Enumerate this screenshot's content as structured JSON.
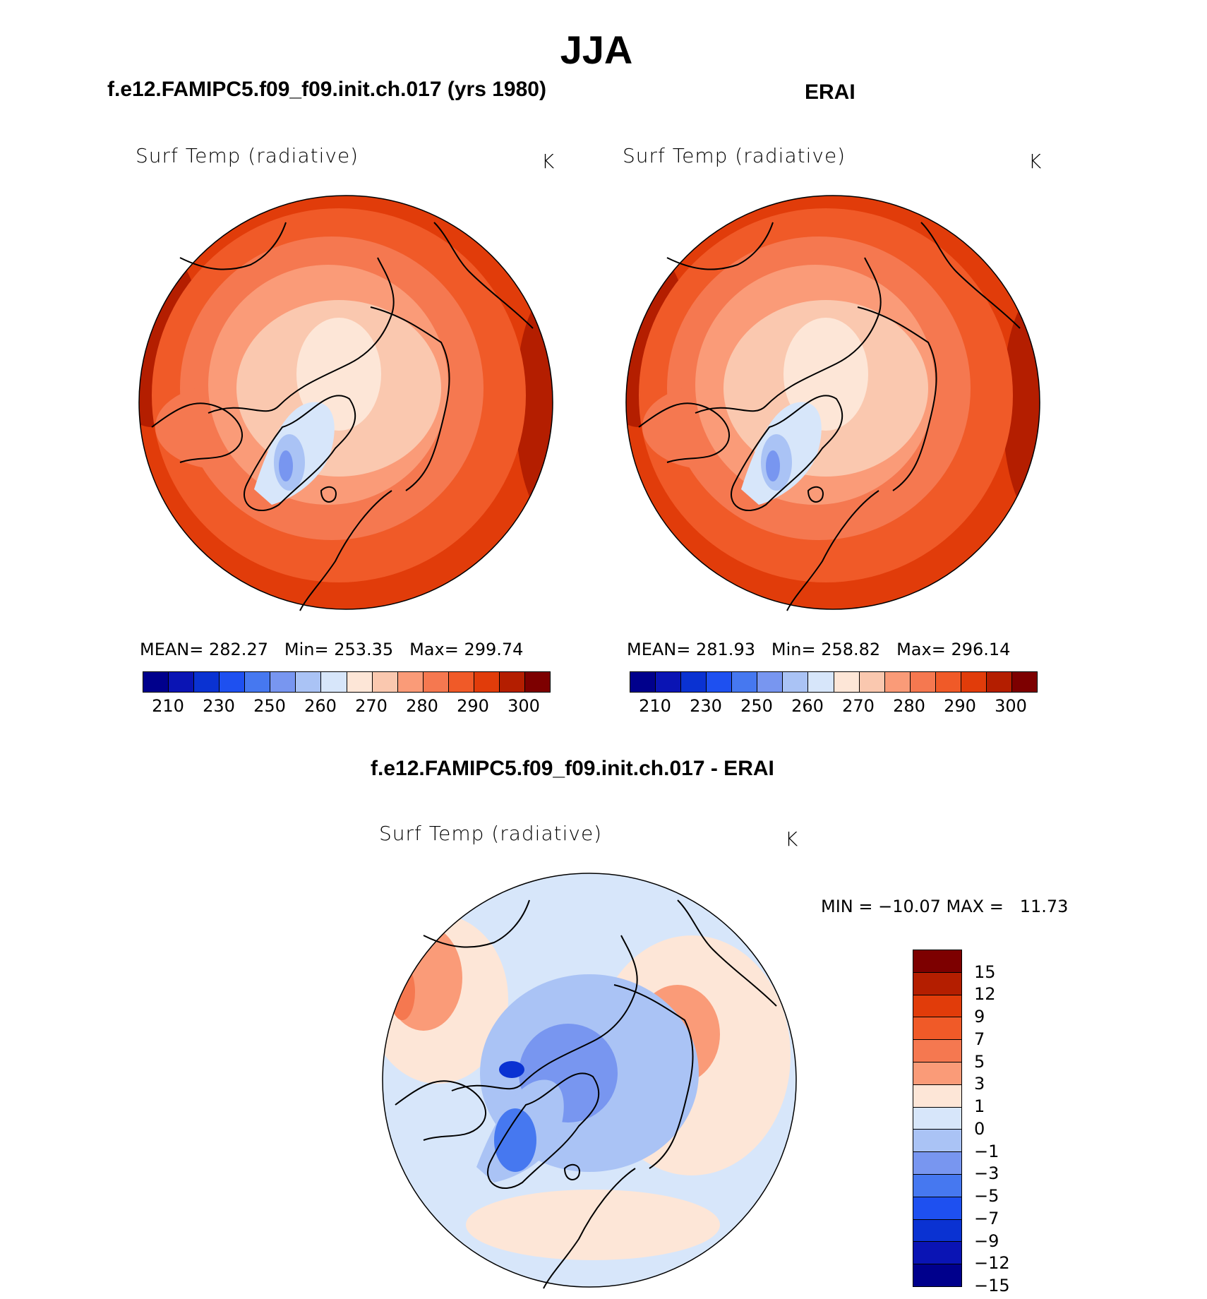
{
  "title": "JJA",
  "colors": {
    "abs_palette": [
      "#00008c",
      "#0a14b4",
      "#0a32d2",
      "#1e50f0",
      "#4678f0",
      "#7896f0",
      "#aac3f5",
      "#d7e6fa",
      "#fde6d7",
      "#fac8af",
      "#fa9b78",
      "#f57850",
      "#f05a28",
      "#e13c0a",
      "#b41e00",
      "#7d0000"
    ],
    "diff_palette": [
      "#7d0000",
      "#b41e00",
      "#e13c0a",
      "#f05a28",
      "#f57850",
      "#fa9b78",
      "#fde6d7",
      "#d7e6fa",
      "#aac3f5",
      "#7896f0",
      "#4678f0",
      "#1e50f0",
      "#0a32d2",
      "#0a14b4",
      "#00008c"
    ]
  },
  "panels": [
    {
      "heading": "f.e12.FAMIPC5.f09_f09.init.ch.017 (yrs 1980)",
      "variable": "Surf Temp (radiative)",
      "units": "K",
      "stats": {
        "mean_label": "MEAN=",
        "mean": "282.27",
        "min_label": "Min=",
        "min": "253.35",
        "max_label": "Max=",
        "max": "299.74"
      },
      "colorbar_ticks": [
        "210",
        "230",
        "250",
        "260",
        "270",
        "280",
        "290",
        "300"
      ]
    },
    {
      "heading": "ERAI",
      "variable": "Surf Temp (radiative)",
      "units": "K",
      "stats": {
        "mean_label": "MEAN=",
        "mean": "281.93",
        "min_label": "Min=",
        "min": "258.82",
        "max_label": "Max=",
        "max": "296.14"
      },
      "colorbar_ticks": [
        "210",
        "230",
        "250",
        "260",
        "270",
        "280",
        "290",
        "300"
      ]
    }
  ],
  "diff_panel": {
    "heading": "f.e12.FAMIPC5.f09_f09.init.ch.017 - ERAI",
    "variable": "Surf Temp (radiative)",
    "units": "K",
    "minmax": "MIN = −10.07 MAX =   11.73",
    "colorbar_ticks": [
      "15",
      "12",
      "9",
      "7",
      "5",
      "3",
      "1",
      "0",
      "−1",
      "−3",
      "−5",
      "−7",
      "−9",
      "−12",
      "−15"
    ]
  },
  "chart_data": {
    "type": "heatmap",
    "projection": "north polar stereographic",
    "season": "JJA",
    "field": "Surf Temp (radiative)",
    "units": "K",
    "maps": [
      {
        "name": "f.e12.FAMIPC5.f09_f09.init.ch.017 (yrs 1980)",
        "mean": 282.27,
        "min": 253.35,
        "max": 299.74,
        "levels": [
          210,
          220,
          230,
          240,
          250,
          255,
          260,
          265,
          270,
          275,
          280,
          285,
          290,
          295,
          300
        ]
      },
      {
        "name": "ERAI",
        "mean": 281.93,
        "min": 258.82,
        "max": 296.14,
        "levels": [
          210,
          220,
          230,
          240,
          250,
          255,
          260,
          265,
          270,
          275,
          280,
          285,
          290,
          295,
          300
        ]
      },
      {
        "name": "f.e12.FAMIPC5.f09_f09.init.ch.017 - ERAI",
        "min": -10.07,
        "max": 11.73,
        "levels": [
          -15,
          -12,
          -9,
          -7,
          -5,
          -3,
          -1,
          0,
          1,
          3,
          5,
          7,
          9,
          12,
          15
        ]
      }
    ]
  }
}
